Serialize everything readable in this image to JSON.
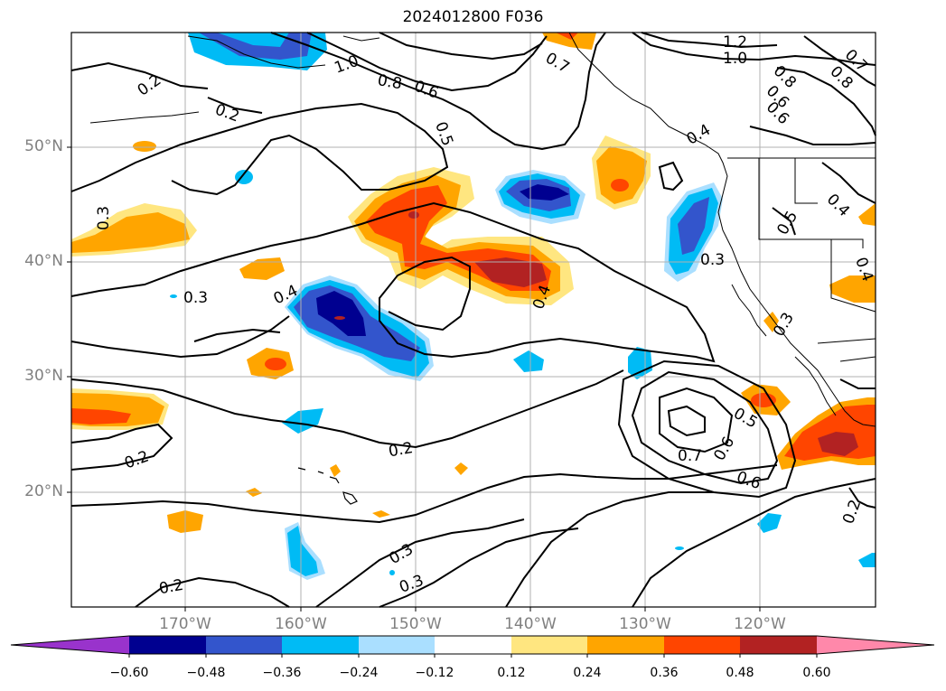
{
  "title": "2024012800 F036",
  "lat_labels": [
    "50°N",
    "40°N",
    "30°N",
    "20°N"
  ],
  "lon_labels": [
    "170°W",
    "160°W",
    "150°W",
    "140°W",
    "130°W",
    "120°W"
  ],
  "colorbar": {
    "ticks": [
      "−0.60",
      "−0.48",
      "−0.36",
      "−0.24",
      "−0.12",
      "0.12",
      "0.24",
      "0.36",
      "0.48",
      "0.60"
    ],
    "colors": [
      "#9933cc",
      "#000090",
      "#3355cc",
      "#00bbf5",
      "#aadfff",
      "#ffffff",
      "#ffe680",
      "#ffa500",
      "#ff4500",
      "#b22222",
      "#ff88aa"
    ]
  },
  "contour_labels": [
    "0.2",
    "0.2",
    "0.3",
    "0.3",
    "0.4",
    "0.5",
    "0.6",
    "0.8",
    "1.0",
    "1.2",
    "0.7",
    "0.8",
    "0.8",
    "0.7",
    "0.6",
    "0.4",
    "0.5",
    "0.4",
    "0.3",
    "0.4",
    "0.3",
    "0.5",
    "0.7",
    "0.6",
    "0.6",
    "0.2",
    "0.2",
    "0.3",
    "0.3",
    "0.2",
    "0.2",
    "1.0",
    "0.6"
  ]
}
